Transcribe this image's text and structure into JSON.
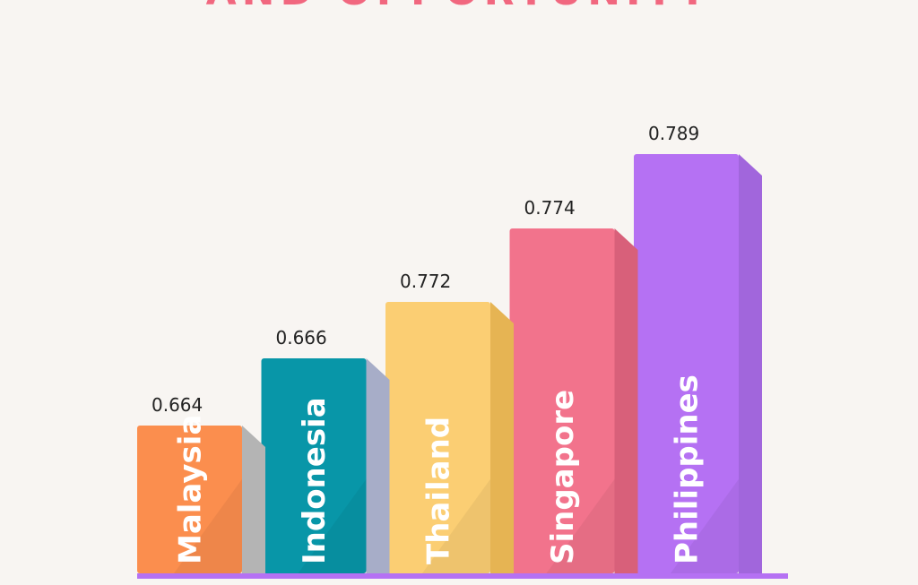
{
  "header": {
    "title": "AND OPPORTUNITY",
    "title_color": "#f1677f"
  },
  "chart_data": {
    "type": "bar",
    "categories": [
      "Malaysia",
      "Indonesia",
      "Thailand",
      "Singapore",
      "Philippines"
    ],
    "values": [
      0.664,
      0.666,
      0.772,
      0.774,
      0.789
    ],
    "value_labels": [
      "0.664",
      "0.666",
      "0.772",
      "0.774",
      "0.789"
    ],
    "colors": [
      "#fb8e4e",
      "#0896a8",
      "#fbce73",
      "#f2738c",
      "#b571f3"
    ],
    "side_colors": [
      "#b4b4b4",
      "#a7adc8",
      "#e6b453",
      "#d8607a",
      "#a166dc"
    ],
    "baseline_color": "#b571f3",
    "grid": false,
    "legend": "none",
    "style": "3d-bars with category labels inside bars"
  }
}
